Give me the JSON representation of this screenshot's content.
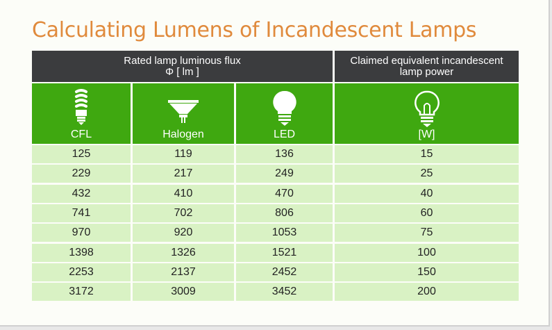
{
  "title": "Calculating Lumens of Incandescent Lamps",
  "header": {
    "flux_line1": "Rated lamp luminous flux",
    "flux_line2": "Φ [ lm ]",
    "power_line1": "Claimed equivalent incandescent",
    "power_line2": "lamp power"
  },
  "columns": [
    {
      "label": "CFL",
      "icon": "cfl-bulb-icon"
    },
    {
      "label": "Halogen",
      "icon": "halogen-spot-icon"
    },
    {
      "label": "LED",
      "icon": "led-bulb-icon"
    },
    {
      "label": "[W]",
      "icon": "incandescent-bulb-icon"
    }
  ],
  "rows": [
    [
      "125",
      "119",
      "136",
      "15"
    ],
    [
      "229",
      "217",
      "249",
      "25"
    ],
    [
      "432",
      "410",
      "470",
      "40"
    ],
    [
      "741",
      "702",
      "806",
      "60"
    ],
    [
      "970",
      "920",
      "1053",
      "75"
    ],
    [
      "1398",
      "1326",
      "1521",
      "100"
    ],
    [
      "2253",
      "2137",
      "2452",
      "150"
    ],
    [
      "3172",
      "3009",
      "3452",
      "200"
    ]
  ],
  "colors": {
    "title": "#e08a3c",
    "header_bg": "#3b3c3e",
    "icon_row_bg": "#3fa810",
    "cell_bg": "#d9f2c4"
  }
}
